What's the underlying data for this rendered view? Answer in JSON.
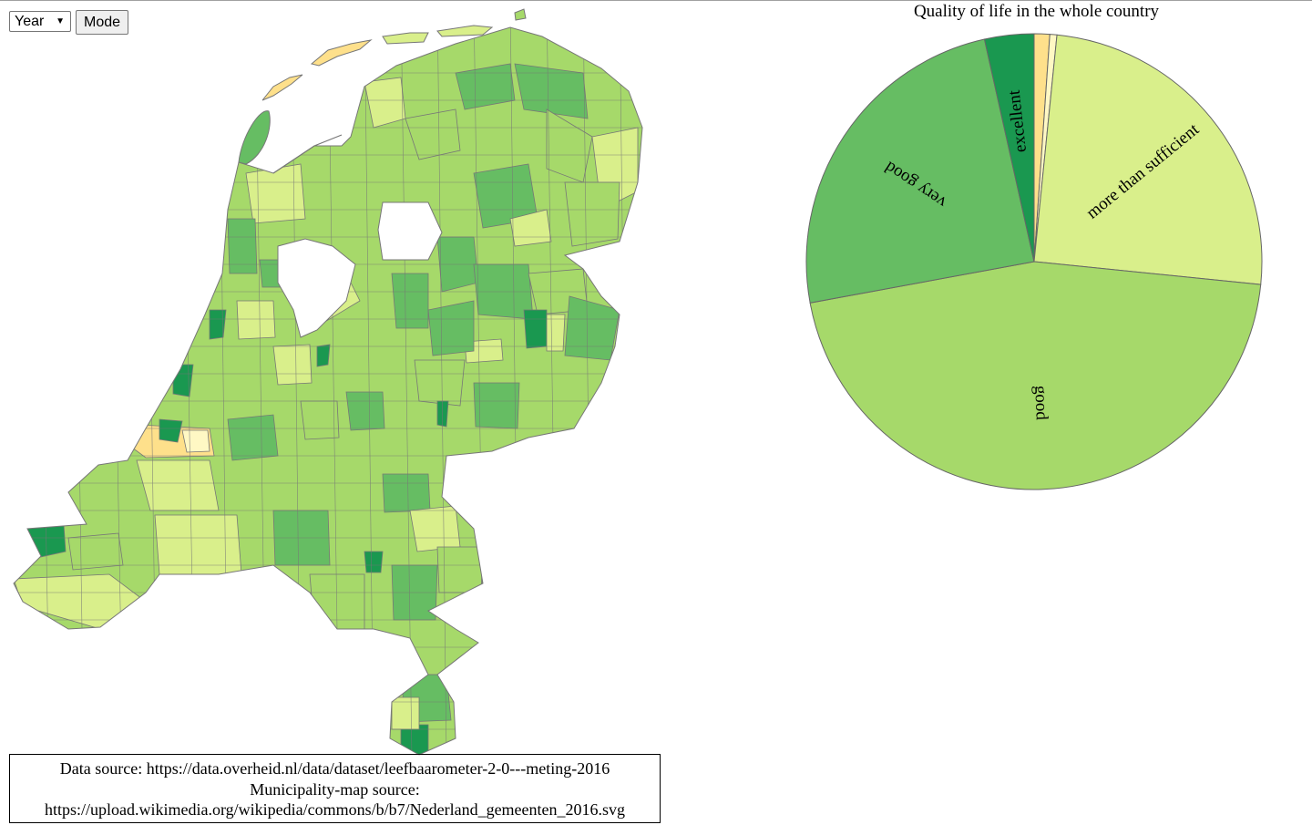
{
  "controls": {
    "year_select_value": "Year",
    "mode_button_label": "Mode"
  },
  "map": {
    "legend_colors": {
      "excellent": "#1a9850",
      "very_good": "#66bd63",
      "good": "#a6d96a",
      "more_than_sufficient": "#d9ef8b",
      "sufficient": "#fee08b",
      "weak": "#fff8c4",
      "water": "#ffffff",
      "border": "#777777"
    }
  },
  "chart_data": {
    "type": "pie",
    "title": "Quality of life in the whole country",
    "slices": [
      {
        "label": "",
        "value": 1.1,
        "color": "#fee08b"
      },
      {
        "label": "",
        "value": 0.5,
        "color": "#fff8c4"
      },
      {
        "label": "more than sufficient",
        "value": 25.0,
        "color": "#d9ef8b"
      },
      {
        "label": "good",
        "value": 45.5,
        "color": "#a6d96a"
      },
      {
        "label": "very good",
        "value": 24.4,
        "color": "#66bd63"
      },
      {
        "label": "excellent",
        "value": 3.5,
        "color": "#1a9850"
      }
    ]
  },
  "source": {
    "line1": "Data source: https://data.overheid.nl/data/dataset/leefbaarometer-2-0---meting-2016",
    "line2": "Municipality-map source:",
    "line3": "https://upload.wikimedia.org/wikipedia/commons/b/b7/Nederland_gemeenten_2016.svg"
  }
}
